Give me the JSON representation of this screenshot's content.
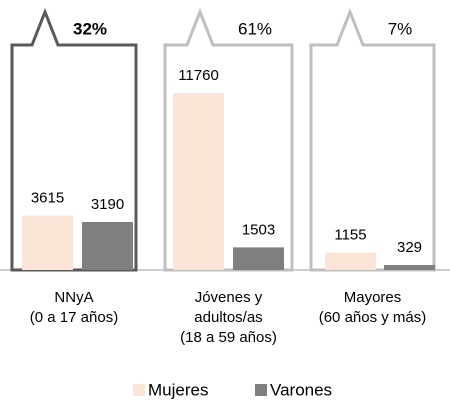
{
  "chart_data": {
    "type": "bar",
    "categories": [
      [
        "NNyA",
        "(0 a 17 años)"
      ],
      [
        "Jóvenes y",
        "adultos/as",
        "(18 a 59 años)"
      ],
      [
        "Mayores",
        "(60 años y más)"
      ]
    ],
    "series": [
      {
        "name": "Mujeres",
        "color": "#fce4d6",
        "values": [
          3615,
          11760,
          1155
        ]
      },
      {
        "name": "Varones",
        "color": "#7f7f7f",
        "values": [
          3190,
          1503,
          329
        ]
      }
    ],
    "annotations": [
      "32%",
      "61%",
      "7%"
    ],
    "box_colors": [
      "#595959",
      "#bfbfbf",
      "#bfbfbf"
    ]
  }
}
